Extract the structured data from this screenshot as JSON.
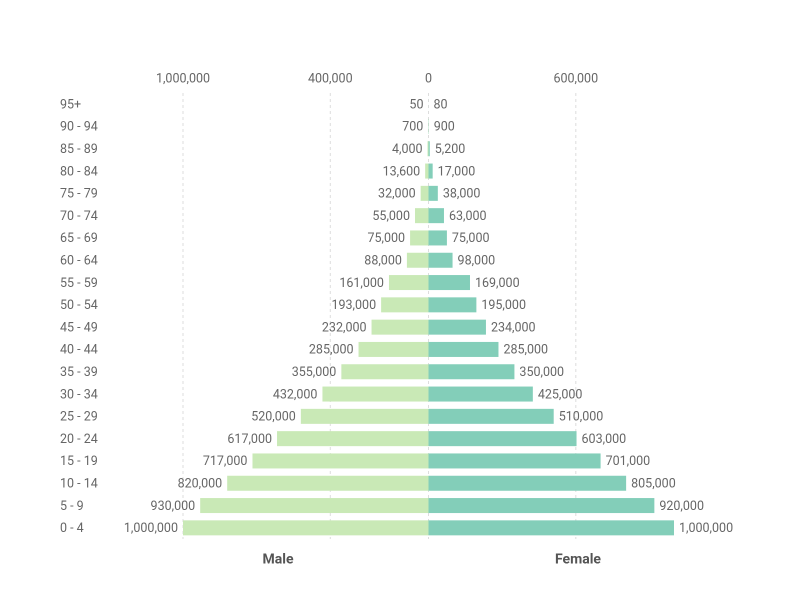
{
  "chart_data": {
    "type": "pyramid",
    "categories": [
      "95+",
      "90 - 94",
      "85 - 89",
      "80 - 84",
      "75 - 79",
      "70 - 74",
      "65 - 69",
      "60 - 64",
      "55 - 59",
      "50 - 54",
      "45 - 49",
      "40 - 44",
      "35 - 39",
      "30 - 34",
      "25 - 29",
      "20 - 24",
      "15 - 19",
      "10 - 14",
      "5 - 9",
      "0 - 4"
    ],
    "series": [
      {
        "name": "Male",
        "color": "#c9e9b6",
        "values": [
          50,
          700,
          4000,
          13600,
          32000,
          55000,
          75000,
          88000,
          161000,
          193000,
          232000,
          285000,
          355000,
          432000,
          520000,
          617000,
          717000,
          820000,
          930000,
          1000000
        ],
        "value_labels": [
          "50",
          "700",
          "4,000",
          "13,600",
          "32,000",
          "55,000",
          "75,000",
          "88,000",
          "161,000",
          "193,000",
          "232,000",
          "285,000",
          "355,000",
          "432,000",
          "520,000",
          "617,000",
          "717,000",
          "820,000",
          "930,000",
          "1,000,000"
        ]
      },
      {
        "name": "Female",
        "color": "#83ceb9",
        "values": [
          80,
          900,
          5200,
          17000,
          38000,
          63000,
          75000,
          98000,
          169000,
          195000,
          234000,
          285000,
          350000,
          425000,
          510000,
          603000,
          701000,
          805000,
          920000,
          1000000
        ],
        "value_labels": [
          "80",
          "900",
          "5,200",
          "17,000",
          "38,000",
          "63,000",
          "75,000",
          "98,000",
          "169,000",
          "195,000",
          "234,000",
          "285,000",
          "350,000",
          "425,000",
          "510,000",
          "603,000",
          "701,000",
          "805,000",
          "920,000",
          "1,000,000"
        ]
      }
    ],
    "xlim": [
      -1000000,
      1000000
    ],
    "xticks": [
      {
        "value": -1000000,
        "label": "1,000,000"
      },
      {
        "value": -400000,
        "label": "400,000"
      },
      0,
      {
        "value": 600000,
        "label": "600,000"
      }
    ],
    "grid": true
  }
}
